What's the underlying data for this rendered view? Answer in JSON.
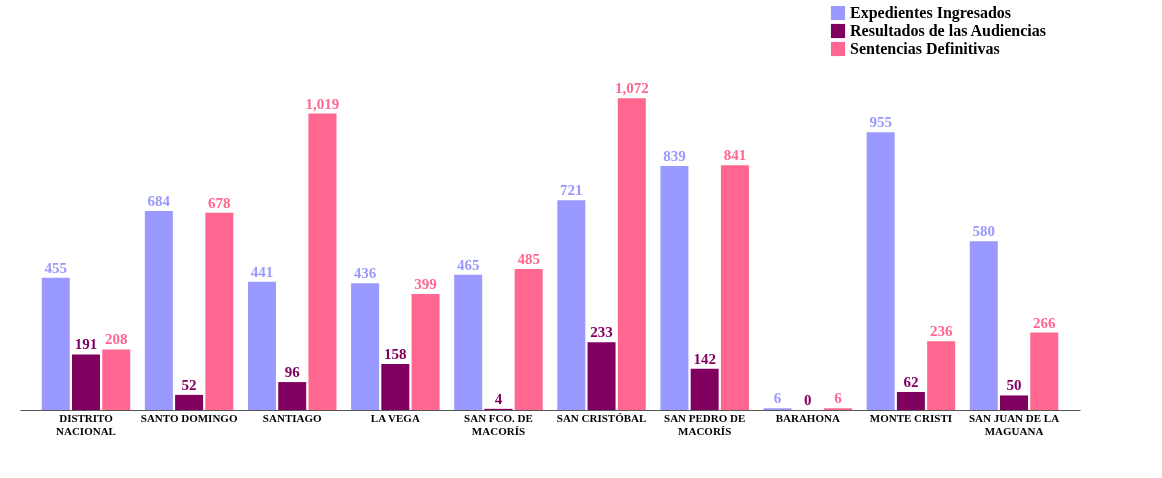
{
  "chart_data": {
    "type": "bar",
    "categories": [
      "DISTRITO NACIONAL",
      "SANTO DOMINGO",
      "SANTIAGO",
      "LA VEGA",
      "SAN FCO. DE MACORÍS",
      "SAN CRISTÓBAL",
      "SAN PEDRO DE MACORÍS",
      "BARAHONA",
      "MONTE CRISTI",
      "SAN JUAN DE LA MAGUANA"
    ],
    "series": [
      {
        "name": "Expedientes Ingresados",
        "color": "#9999ff",
        "values": [
          455,
          684,
          441,
          436,
          465,
          721,
          839,
          6,
          955,
          580
        ],
        "value_labels": [
          "455",
          "684",
          "441",
          "436",
          "465",
          "721",
          "839",
          "6",
          "955",
          "580"
        ]
      },
      {
        "name": "Resultados de las Audiencias",
        "color": "#800060",
        "values": [
          191,
          52,
          96,
          158,
          4,
          233,
          142,
          0,
          62,
          50
        ],
        "value_labels": [
          "191",
          "52",
          "96",
          "158",
          "4",
          "233",
          "142",
          "0",
          "62",
          "50"
        ]
      },
      {
        "name": "Sentencias Definitivas",
        "color": "#ff6690",
        "values": [
          208,
          678,
          1019,
          399,
          485,
          1072,
          841,
          6,
          236,
          266
        ],
        "value_labels": [
          "208",
          "678",
          "1,019",
          "399",
          "485",
          "1,072",
          "841",
          "6",
          "236",
          "266"
        ]
      }
    ],
    "legend": "top right"
  }
}
